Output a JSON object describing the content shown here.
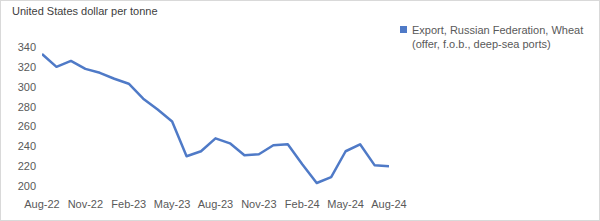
{
  "chart_data": {
    "type": "line",
    "y_label": "United States dollar per tonne",
    "categories": [
      "Aug-22",
      null,
      null,
      "Nov-22",
      null,
      null,
      "Feb-23",
      null,
      null,
      "May-23",
      null,
      null,
      "Aug-23",
      null,
      null,
      "Nov-23",
      null,
      null,
      "Feb-24",
      null,
      null,
      "May-24",
      null,
      null,
      "Aug-24"
    ],
    "series": [
      {
        "name": "Export, Russian Federation, Wheat (offer, f.o.b., deep-sea ports)",
        "color": "#4f7ac7",
        "values": [
          333,
          320,
          326,
          318,
          314,
          308,
          303,
          288,
          277,
          265,
          230,
          235,
          248,
          243,
          231,
          232,
          241,
          242,
          222,
          203,
          209,
          235,
          242,
          221,
          220
        ]
      }
    ],
    "ylim": [
      200,
      340
    ],
    "yticks": [
      200,
      220,
      240,
      260,
      280,
      300,
      320,
      340
    ],
    "grid": false,
    "legend": "right"
  }
}
